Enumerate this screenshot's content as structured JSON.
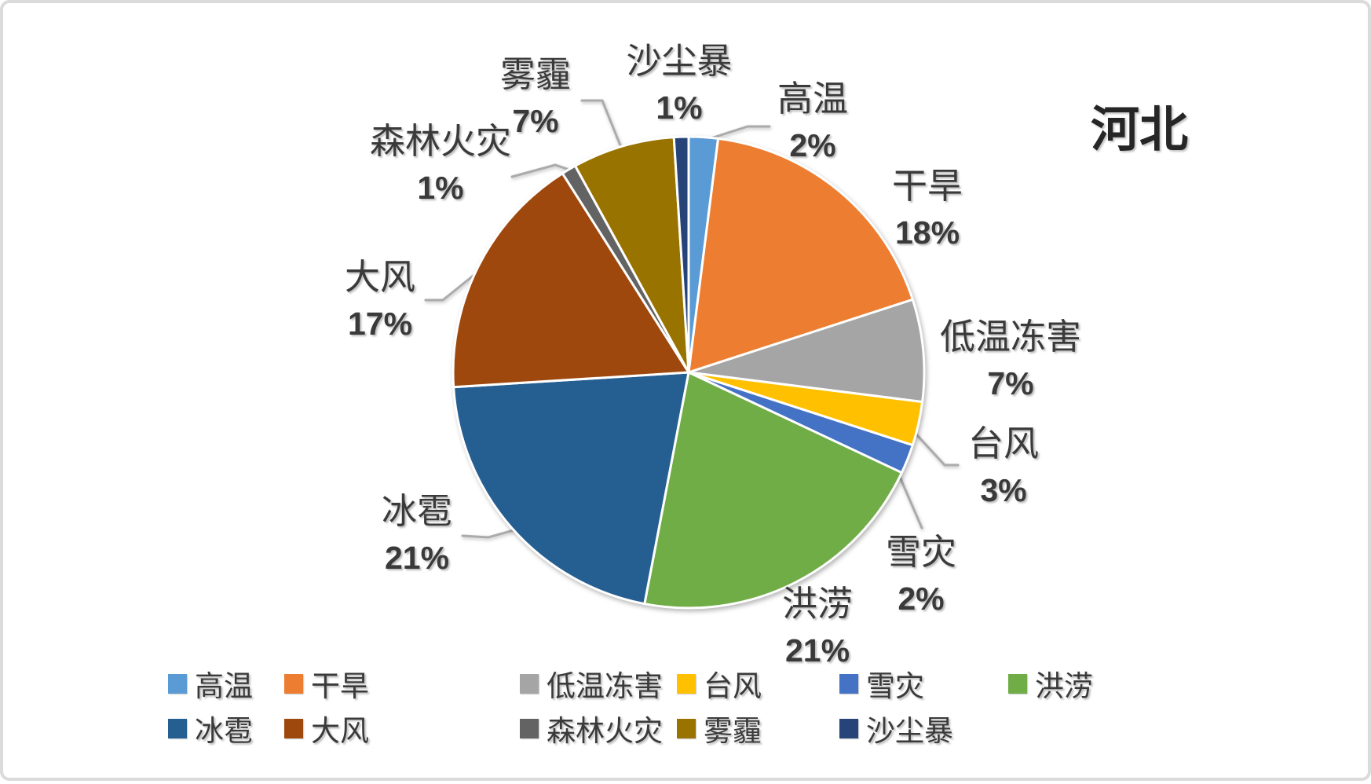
{
  "chart_data": {
    "type": "pie",
    "title": "河北",
    "legend_position": "bottom",
    "series": [
      {
        "name": "高温",
        "value": 2,
        "percent_label": "2%",
        "color": "#5B9BD5"
      },
      {
        "name": "干旱",
        "value": 18,
        "percent_label": "18%",
        "color": "#ED7D31"
      },
      {
        "name": "低温冻害",
        "value": 7,
        "percent_label": "7%",
        "color": "#A5A5A5"
      },
      {
        "name": "台风",
        "value": 3,
        "percent_label": "3%",
        "color": "#FFC000"
      },
      {
        "name": "雪灾",
        "value": 2,
        "percent_label": "2%",
        "color": "#4472C4"
      },
      {
        "name": "洪涝",
        "value": 21,
        "percent_label": "21%",
        "color": "#70AD47"
      },
      {
        "name": "冰雹",
        "value": 21,
        "percent_label": "21%",
        "color": "#255E91"
      },
      {
        "name": "大风",
        "value": 17,
        "percent_label": "17%",
        "color": "#9E480E"
      },
      {
        "name": "森林火灾",
        "value": 1,
        "percent_label": "1%",
        "color": "#636363"
      },
      {
        "name": "雾霾",
        "value": 7,
        "percent_label": "7%",
        "color": "#997300"
      },
      {
        "name": "沙尘暴",
        "value": 1,
        "percent_label": "1%",
        "color": "#264478"
      }
    ],
    "legend_rows": [
      [
        "高温",
        "干旱",
        "低温冻害",
        "台风",
        "雪灾",
        "洪涝"
      ],
      [
        "冰雹",
        "大风",
        "森林火灾",
        "雾霾",
        "沙尘暴"
      ]
    ]
  }
}
